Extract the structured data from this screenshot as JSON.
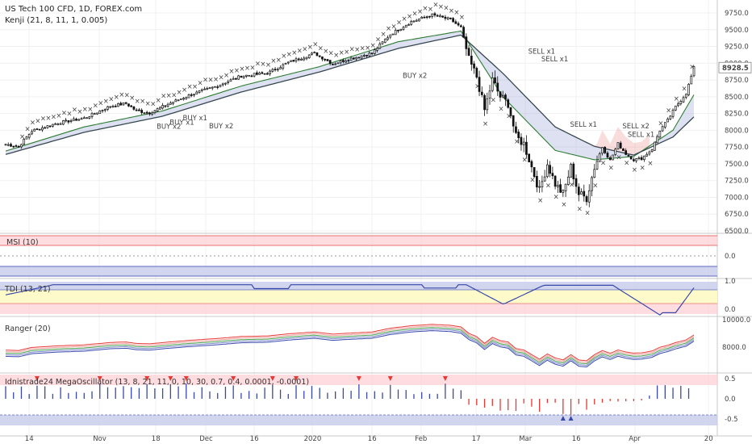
{
  "chart_data": {
    "type": "candlestick",
    "title": "US Tech 100 CFD, 1D, FOREX.com",
    "subtitle": "Kenji (21, 8, 11, 1, 0.005)",
    "current_price": "8928.5",
    "x_tick_labels": [
      "14",
      "Nov",
      "18",
      "Dec",
      "16",
      "2020",
      "16",
      "Feb",
      "17",
      "Mar",
      "16",
      "Apr",
      "20"
    ],
    "y_tick_labels": [
      "9750.0",
      "9500.0",
      "9250.0",
      "9000.0",
      "8750.0",
      "8500.0",
      "8250.0",
      "8000.0",
      "7750.0",
      "7500.0",
      "7250.0",
      "7000.0",
      "6750.0",
      "6500.0"
    ],
    "ylim": [
      6500,
      9800
    ],
    "close_anchors": [
      [
        0,
        7790
      ],
      [
        5,
        7760
      ],
      [
        10,
        7990
      ],
      [
        20,
        8110
      ],
      [
        30,
        8180
      ],
      [
        40,
        8360
      ],
      [
        46,
        8400
      ],
      [
        50,
        8290
      ],
      [
        55,
        8260
      ],
      [
        62,
        8390
      ],
      [
        70,
        8520
      ],
      [
        80,
        8650
      ],
      [
        90,
        8810
      ],
      [
        100,
        8850
      ],
      [
        108,
        9010
      ],
      [
        118,
        9150
      ],
      [
        125,
        8990
      ],
      [
        130,
        9050
      ],
      [
        140,
        9150
      ],
      [
        147,
        9430
      ],
      [
        155,
        9620
      ],
      [
        163,
        9720
      ],
      [
        170,
        9650
      ],
      [
        174,
        9530
      ],
      [
        177,
        9050
      ],
      [
        180,
        8800
      ],
      [
        183,
        8300
      ],
      [
        186,
        8750
      ],
      [
        189,
        8500
      ],
      [
        192,
        8400
      ],
      [
        195,
        7900
      ],
      [
        198,
        7800
      ],
      [
        201,
        7450
      ],
      [
        204,
        7100
      ],
      [
        207,
        7500
      ],
      [
        210,
        7200
      ],
      [
        213,
        7050
      ],
      [
        216,
        7450
      ],
      [
        219,
        7050
      ],
      [
        222,
        6990
      ],
      [
        225,
        7450
      ],
      [
        228,
        7750
      ],
      [
        231,
        7550
      ],
      [
        234,
        7800
      ],
      [
        237,
        7650
      ],
      [
        240,
        7560
      ],
      [
        243,
        7580
      ],
      [
        247,
        7720
      ],
      [
        250,
        8000
      ],
      [
        253,
        8150
      ],
      [
        256,
        8350
      ],
      [
        260,
        8550
      ],
      [
        263,
        8930
      ]
    ],
    "series": [
      {
        "name": "",
        "values_anchors": [
          [
            0,
            7690
          ],
          [
            30,
            8050
          ],
          [
            60,
            8290
          ],
          [
            90,
            8660
          ],
          [
            120,
            8950
          ],
          [
            150,
            9320
          ],
          [
            174,
            9480
          ],
          [
            190,
            8500
          ],
          [
            210,
            7700
          ],
          [
            225,
            7560
          ],
          [
            240,
            7610
          ],
          [
            255,
            8000
          ],
          [
            263,
            8530
          ]
        ],
        "color": "#2e7d32"
      },
      {
        "name": "",
        "values_anchors": [
          [
            0,
            7640
          ],
          [
            30,
            7970
          ],
          [
            60,
            8210
          ],
          [
            90,
            8570
          ],
          [
            120,
            8870
          ],
          [
            150,
            9220
          ],
          [
            174,
            9420
          ],
          [
            190,
            8850
          ],
          [
            210,
            8050
          ],
          [
            225,
            7760
          ],
          [
            240,
            7630
          ],
          [
            255,
            7900
          ],
          [
            263,
            8200
          ]
        ],
        "color": "#333333"
      }
    ],
    "annotations": [
      {
        "text": "BUY x2",
        "x": 62,
        "y": 8020
      },
      {
        "text": "BUY x1",
        "x": 67,
        "y": 8080
      },
      {
        "text": "BUY x1",
        "x": 72,
        "y": 8150
      },
      {
        "text": "BUY x2",
        "x": 82,
        "y": 8030
      },
      {
        "text": "BUY x2",
        "x": 156,
        "y": 8780
      },
      {
        "text": "SELL x1",
        "x": 204,
        "y": 9140
      },
      {
        "text": "SELL x1",
        "x": 209,
        "y": 9030
      },
      {
        "text": "SELL x1",
        "x": 220,
        "y": 8050
      },
      {
        "text": "SELL x2",
        "x": 240,
        "y": 8030
      },
      {
        "text": "SELL x1",
        "x": 242,
        "y": 7900
      }
    ],
    "panels": [
      {
        "title": "MSI (10)",
        "tick_labels": [
          "0.0"
        ]
      },
      {
        "title": "TDI (13, 21)",
        "tick_labels": [
          "1.0",
          "0.0"
        ]
      },
      {
        "title": "Ranger (20)",
        "tick_labels": [
          "10000.0",
          "8000.0"
        ]
      },
      {
        "title": "Idnistrade24 MegaOscillator (13, 8, 21, 11, 0, 10, 30, 0.7, 0.4, 0.0001, -0.0001)",
        "tick_labels": [
          "0.5",
          "0.0",
          "-0.5"
        ]
      }
    ]
  }
}
